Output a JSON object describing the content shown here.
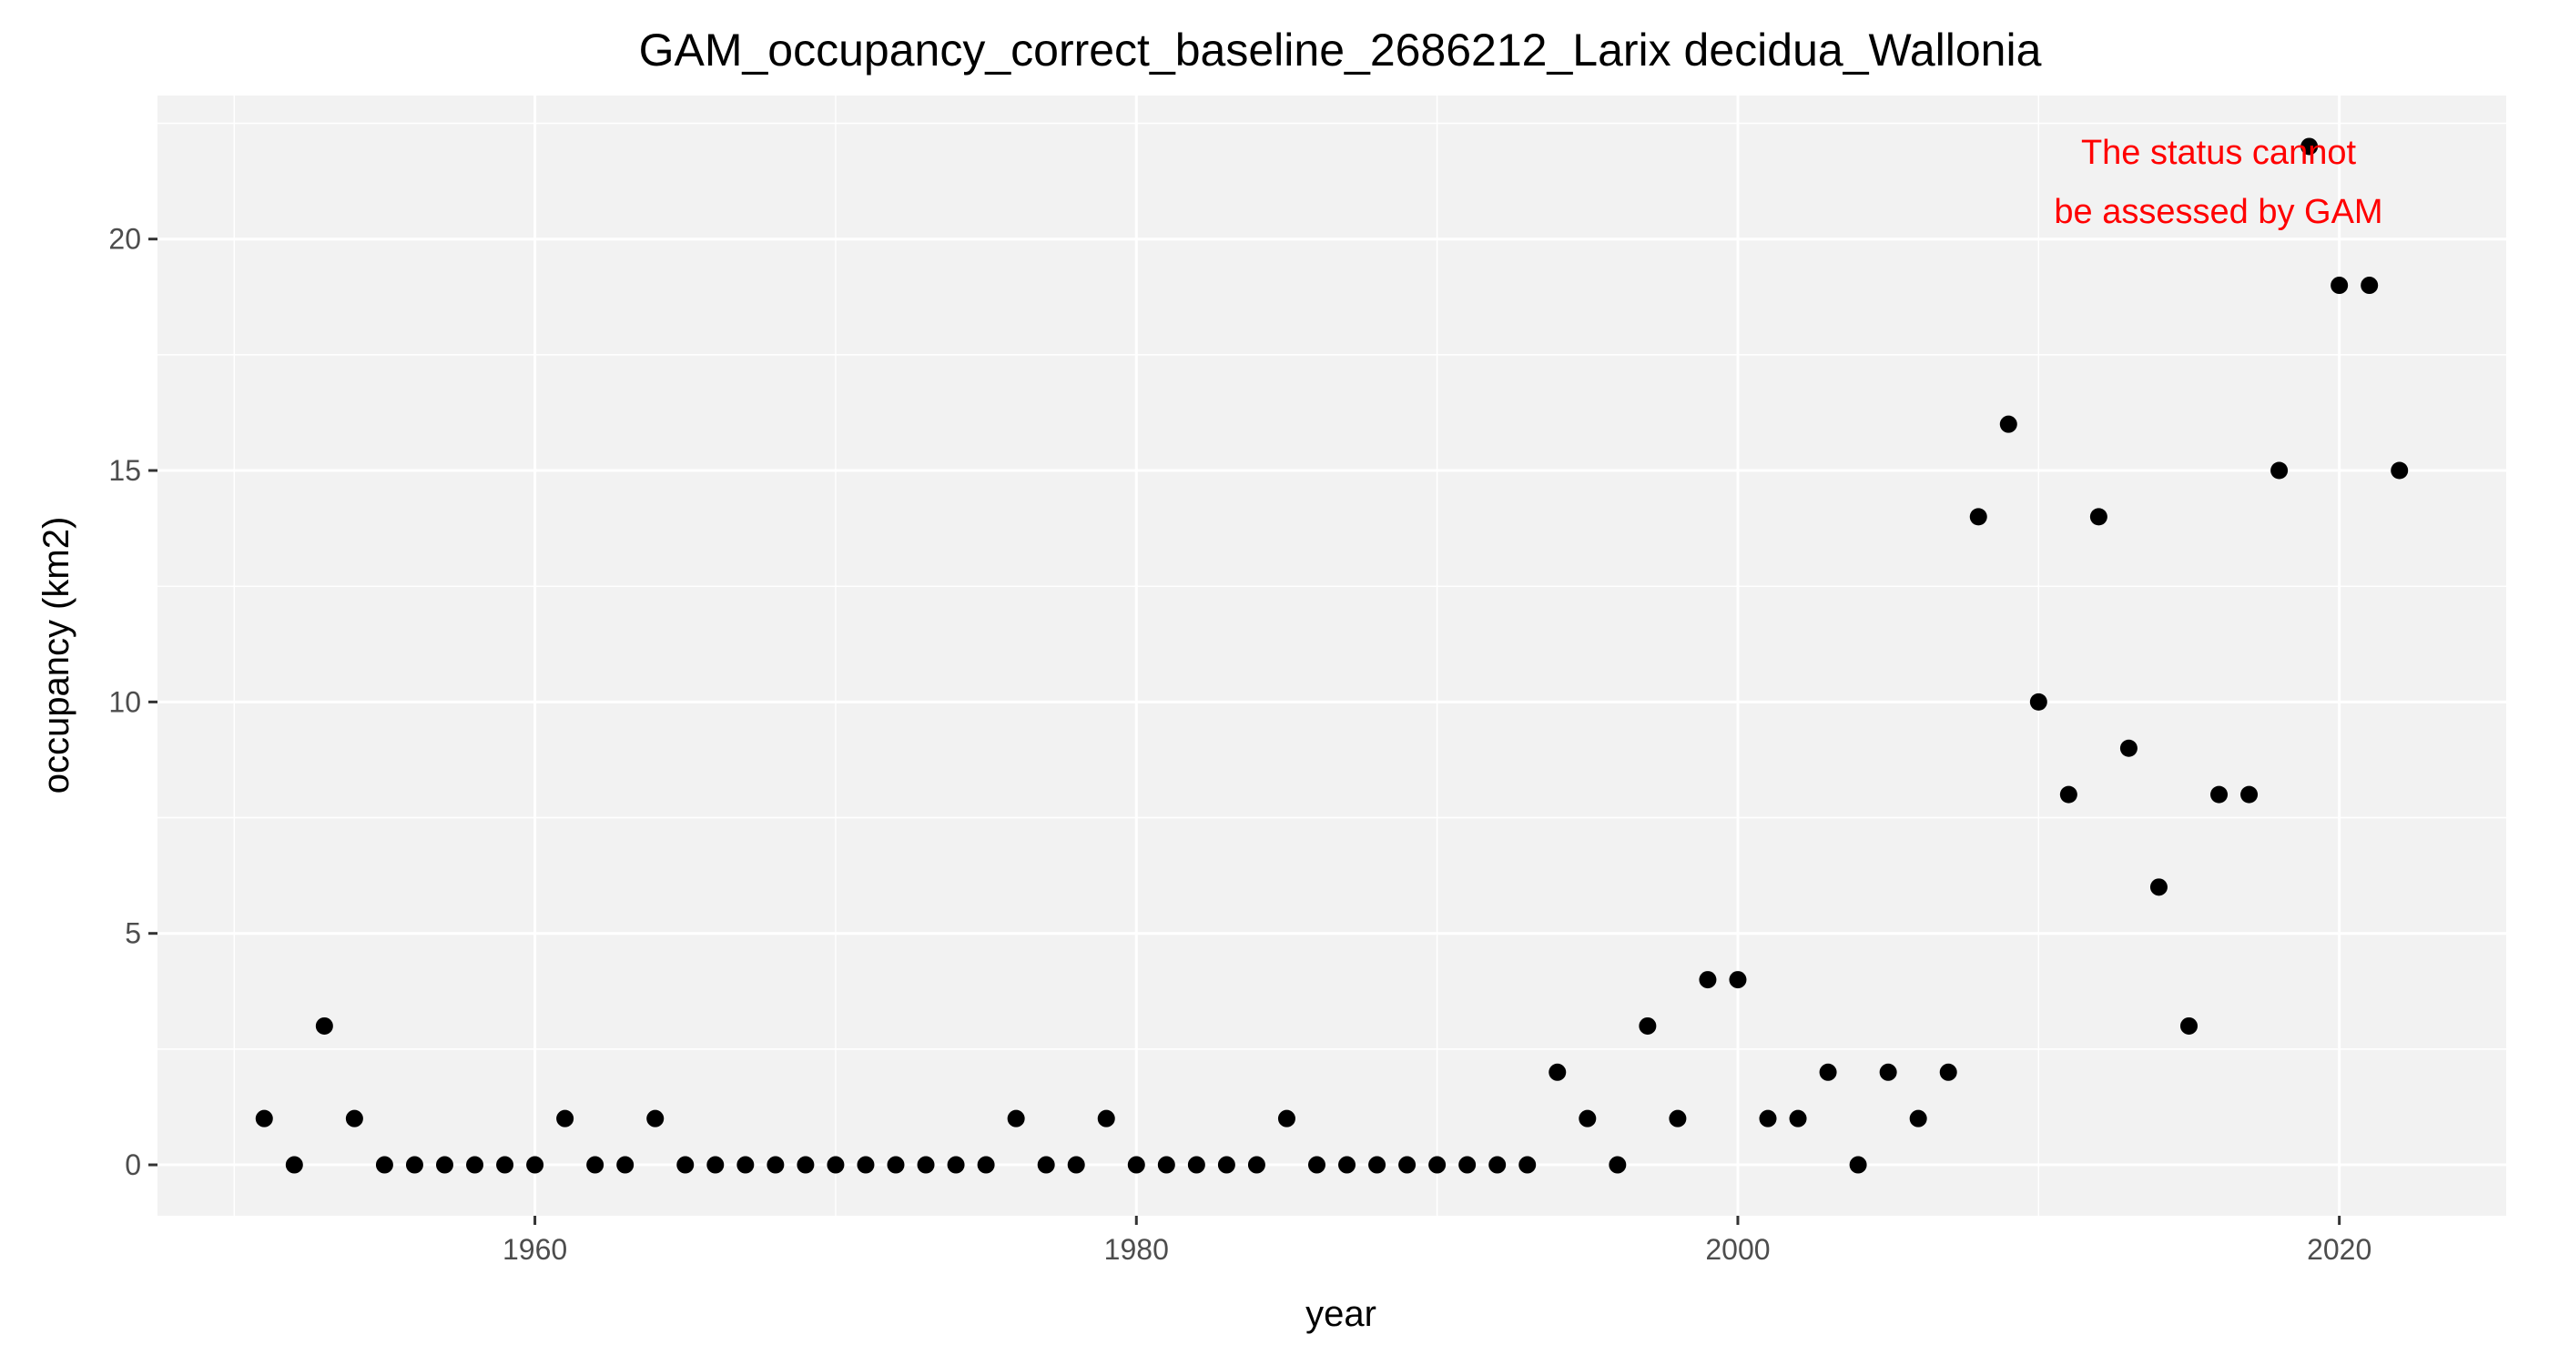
{
  "chart_data": {
    "type": "scatter",
    "title": "GAM_occupancy_correct_baseline_2686212_Larix decidua_Wallonia",
    "xlabel": "year",
    "ylabel": "occupancy (km2)",
    "xlim": [
      1947.45,
      2025.55
    ],
    "ylim": [
      -1.1,
      23.1
    ],
    "x_ticks": [
      1960,
      1980,
      2000,
      2020
    ],
    "y_ticks": [
      0,
      5,
      10,
      15,
      20
    ],
    "grid": true,
    "panel_background": "#f2f2f2",
    "grid_color": "#ffffff",
    "point_color": "#000000",
    "annotation": {
      "lines": [
        "The status cannot",
        "be assessed by GAM"
      ],
      "color": "#ff0000"
    },
    "points": [
      {
        "x": 1951,
        "y": 1
      },
      {
        "x": 1952,
        "y": 0
      },
      {
        "x": 1953,
        "y": 3
      },
      {
        "x": 1954,
        "y": 1
      },
      {
        "x": 1955,
        "y": 0
      },
      {
        "x": 1956,
        "y": 0
      },
      {
        "x": 1957,
        "y": 0
      },
      {
        "x": 1958,
        "y": 0
      },
      {
        "x": 1959,
        "y": 0
      },
      {
        "x": 1960,
        "y": 0
      },
      {
        "x": 1961,
        "y": 1
      },
      {
        "x": 1962,
        "y": 0
      },
      {
        "x": 1963,
        "y": 0
      },
      {
        "x": 1964,
        "y": 1
      },
      {
        "x": 1965,
        "y": 0
      },
      {
        "x": 1966,
        "y": 0
      },
      {
        "x": 1967,
        "y": 0
      },
      {
        "x": 1968,
        "y": 0
      },
      {
        "x": 1969,
        "y": 0
      },
      {
        "x": 1970,
        "y": 0
      },
      {
        "x": 1971,
        "y": 0
      },
      {
        "x": 1972,
        "y": 0
      },
      {
        "x": 1973,
        "y": 0
      },
      {
        "x": 1974,
        "y": 0
      },
      {
        "x": 1975,
        "y": 0
      },
      {
        "x": 1976,
        "y": 1
      },
      {
        "x": 1977,
        "y": 0
      },
      {
        "x": 1978,
        "y": 0
      },
      {
        "x": 1979,
        "y": 1
      },
      {
        "x": 1980,
        "y": 0
      },
      {
        "x": 1981,
        "y": 0
      },
      {
        "x": 1982,
        "y": 0
      },
      {
        "x": 1983,
        "y": 0
      },
      {
        "x": 1984,
        "y": 0
      },
      {
        "x": 1985,
        "y": 1
      },
      {
        "x": 1986,
        "y": 0
      },
      {
        "x": 1987,
        "y": 0
      },
      {
        "x": 1988,
        "y": 0
      },
      {
        "x": 1989,
        "y": 0
      },
      {
        "x": 1990,
        "y": 0
      },
      {
        "x": 1991,
        "y": 0
      },
      {
        "x": 1992,
        "y": 0
      },
      {
        "x": 1993,
        "y": 0
      },
      {
        "x": 1994,
        "y": 2
      },
      {
        "x": 1995,
        "y": 1
      },
      {
        "x": 1996,
        "y": 0
      },
      {
        "x": 1997,
        "y": 3
      },
      {
        "x": 1998,
        "y": 1
      },
      {
        "x": 1999,
        "y": 4
      },
      {
        "x": 2000,
        "y": 4
      },
      {
        "x": 2001,
        "y": 1
      },
      {
        "x": 2002,
        "y": 1
      },
      {
        "x": 2003,
        "y": 2
      },
      {
        "x": 2004,
        "y": 0
      },
      {
        "x": 2005,
        "y": 2
      },
      {
        "x": 2006,
        "y": 1
      },
      {
        "x": 2007,
        "y": 2
      },
      {
        "x": 2008,
        "y": 14
      },
      {
        "x": 2009,
        "y": 16
      },
      {
        "x": 2010,
        "y": 10
      },
      {
        "x": 2011,
        "y": 8
      },
      {
        "x": 2012,
        "y": 14
      },
      {
        "x": 2013,
        "y": 9
      },
      {
        "x": 2014,
        "y": 6
      },
      {
        "x": 2015,
        "y": 3
      },
      {
        "x": 2016,
        "y": 8
      },
      {
        "x": 2017,
        "y": 8
      },
      {
        "x": 2018,
        "y": 15
      },
      {
        "x": 2019,
        "y": 22
      },
      {
        "x": 2020,
        "y": 19
      },
      {
        "x": 2021,
        "y": 19
      },
      {
        "x": 2022,
        "y": 15
      }
    ]
  }
}
